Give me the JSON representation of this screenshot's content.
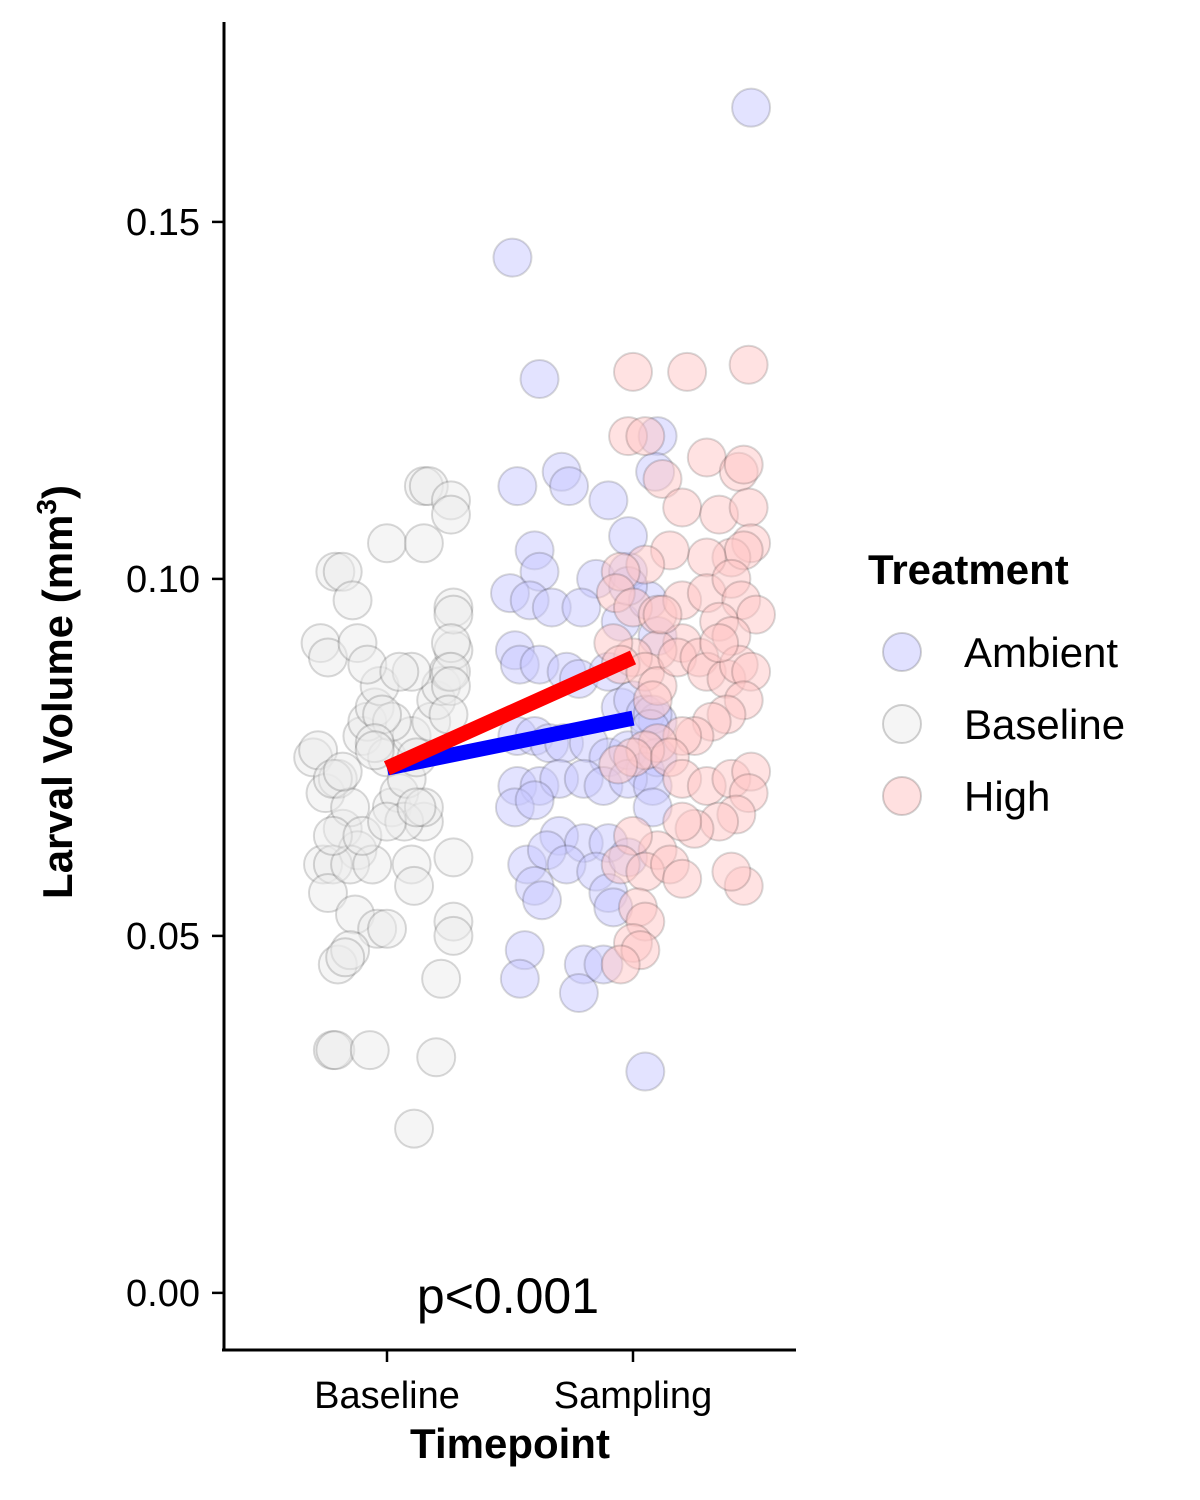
{
  "chart_data": {
    "type": "scatter",
    "xlabel": "Timepoint",
    "ylabel": "Larval Volume (mm",
    "ylabel_sup": "3",
    "ylabel_close": ")",
    "categories": [
      "Baseline",
      "Sampling"
    ],
    "ylim": [
      -0.008,
      0.178
    ],
    "yticks": [
      0.0,
      0.05,
      0.1,
      0.15
    ],
    "ytick_labels": [
      "0.00",
      "0.05",
      "0.10",
      "0.15"
    ],
    "grid": false,
    "legend": {
      "title": "Treatment",
      "position": "right",
      "entries": [
        {
          "name": "Ambient",
          "color": "#0000ff"
        },
        {
          "name": "Baseline",
          "color": "#bfbfbf"
        },
        {
          "name": "High",
          "color": "#ff0000"
        }
      ]
    },
    "annotation": "p<0.001",
    "colors": {
      "Ambient_fill": "#c8c8ff",
      "Baseline_fill": "#ececec",
      "High_fill": "#ffc6c6",
      "Ambient_line": "#0000ff",
      "High_line": "#ff0000"
    },
    "trend_lines": [
      {
        "name": "Ambient",
        "from": {
          "x": "Baseline",
          "y": 0.0735
        },
        "to": {
          "x": "Sampling",
          "y": 0.0805
        }
      },
      {
        "name": "High",
        "from": {
          "x": "Baseline",
          "y": 0.0735
        },
        "to": {
          "x": "Sampling",
          "y": 0.089
        }
      }
    ],
    "series": [
      {
        "name": "Baseline",
        "x": "Baseline",
        "points": [
          [
            -0.3,
            0.075
          ],
          [
            -0.28,
            0.076
          ],
          [
            -0.25,
            0.07
          ],
          [
            -0.2,
            0.072
          ],
          [
            -0.22,
            0.072
          ],
          [
            -0.18,
            0.065
          ],
          [
            -0.15,
            0.068
          ],
          [
            -0.12,
            0.062
          ],
          [
            -0.1,
            0.078
          ],
          [
            -0.08,
            0.08
          ],
          [
            -0.05,
            0.082
          ],
          [
            -0.03,
            0.085
          ],
          [
            0.0,
            0.075
          ],
          [
            0.02,
            0.068
          ],
          [
            0.05,
            0.07
          ],
          [
            0.08,
            0.072
          ],
          [
            0.1,
            0.078
          ],
          [
            0.12,
            0.075
          ],
          [
            0.15,
            0.066
          ],
          [
            0.18,
            0.08
          ],
          [
            0.2,
            0.083
          ],
          [
            0.22,
            0.085
          ],
          [
            0.25,
            0.087
          ],
          [
            0.27,
            0.09
          ],
          [
            -0.27,
            0.091
          ],
          [
            -0.24,
            0.089
          ],
          [
            -0.21,
            0.101
          ],
          [
            -0.18,
            0.101
          ],
          [
            -0.14,
            0.097
          ],
          [
            -0.12,
            0.091
          ],
          [
            -0.08,
            0.088
          ],
          [
            0.0,
            0.105
          ],
          [
            0.15,
            0.105
          ],
          [
            0.15,
            0.113
          ],
          [
            0.17,
            0.113
          ],
          [
            0.26,
            0.111
          ],
          [
            0.26,
            0.109
          ],
          [
            0.27,
            0.096
          ],
          [
            0.27,
            0.095
          ],
          [
            0.26,
            0.091
          ],
          [
            0.26,
            0.087
          ],
          [
            0.26,
            0.085
          ],
          [
            0.25,
            0.081
          ],
          [
            0.1,
            0.087
          ],
          [
            0.05,
            0.087
          ],
          [
            0.02,
            0.08
          ],
          [
            -0.02,
            0.081
          ],
          [
            -0.05,
            0.077
          ],
          [
            -0.26,
            0.06
          ],
          [
            -0.22,
            0.06
          ],
          [
            -0.24,
            0.056
          ],
          [
            -0.15,
            0.06
          ],
          [
            -0.13,
            0.053
          ],
          [
            -0.06,
            0.06
          ],
          [
            -0.04,
            0.051
          ],
          [
            0.0,
            0.051
          ],
          [
            0.1,
            0.06
          ],
          [
            0.11,
            0.057
          ],
          [
            0.27,
            0.061
          ],
          [
            0.27,
            0.052
          ],
          [
            0.27,
            0.05
          ],
          [
            -0.2,
            0.046
          ],
          [
            -0.15,
            0.048
          ],
          [
            -0.17,
            0.047
          ],
          [
            0.22,
            0.044
          ],
          [
            -0.22,
            0.034
          ],
          [
            -0.21,
            0.034
          ],
          [
            -0.07,
            0.034
          ],
          [
            0.2,
            0.033
          ],
          [
            0.11,
            0.023
          ],
          [
            0.07,
            0.066
          ],
          [
            0.15,
            0.068
          ],
          [
            -0.22,
            0.064
          ],
          [
            -0.1,
            0.064
          ],
          [
            0.0,
            0.066
          ],
          [
            0.12,
            0.068
          ],
          [
            -0.18,
            0.073
          ],
          [
            -0.05,
            0.076
          ]
        ]
      },
      {
        "name": "Ambient",
        "x": "Sampling",
        "points": [
          [
            0.48,
            0.166
          ],
          [
            -0.49,
            0.145
          ],
          [
            -0.38,
            0.128
          ],
          [
            -0.29,
            0.115
          ],
          [
            -0.47,
            0.113
          ],
          [
            -0.26,
            0.113
          ],
          [
            -0.1,
            0.111
          ],
          [
            -0.4,
            0.104
          ],
          [
            -0.38,
            0.101
          ],
          [
            -0.15,
            0.1
          ],
          [
            -0.02,
            0.101
          ],
          [
            -0.5,
            0.098
          ],
          [
            -0.42,
            0.097
          ],
          [
            -0.33,
            0.096
          ],
          [
            -0.21,
            0.096
          ],
          [
            -0.05,
            0.094
          ],
          [
            0.06,
            0.097
          ],
          [
            0.1,
            0.092
          ],
          [
            -0.48,
            0.09
          ],
          [
            -0.46,
            0.088
          ],
          [
            -0.38,
            0.088
          ],
          [
            -0.27,
            0.087
          ],
          [
            -0.22,
            0.086
          ],
          [
            -0.1,
            0.087
          ],
          [
            -0.05,
            0.082
          ],
          [
            0.0,
            0.083
          ],
          [
            0.05,
            0.081
          ],
          [
            0.1,
            0.08
          ],
          [
            -0.47,
            0.078
          ],
          [
            -0.4,
            0.078
          ],
          [
            -0.34,
            0.077
          ],
          [
            -0.28,
            0.077
          ],
          [
            -0.18,
            0.077
          ],
          [
            -0.1,
            0.075
          ],
          [
            -0.02,
            0.076
          ],
          [
            0.05,
            0.073
          ],
          [
            0.1,
            0.075
          ],
          [
            -0.47,
            0.071
          ],
          [
            -0.38,
            0.071
          ],
          [
            -0.3,
            0.072
          ],
          [
            -0.2,
            0.072
          ],
          [
            -0.12,
            0.071
          ],
          [
            -0.02,
            0.072
          ],
          [
            0.08,
            0.071
          ],
          [
            -0.48,
            0.068
          ],
          [
            -0.4,
            0.069
          ],
          [
            0.08,
            0.068
          ],
          [
            -0.3,
            0.064
          ],
          [
            -0.2,
            0.063
          ],
          [
            -0.1,
            0.063
          ],
          [
            -0.43,
            0.06
          ],
          [
            -0.35,
            0.062
          ],
          [
            -0.27,
            0.06
          ],
          [
            -0.15,
            0.059
          ],
          [
            -0.02,
            0.061
          ],
          [
            -0.4,
            0.057
          ],
          [
            -0.37,
            0.055
          ],
          [
            -0.1,
            0.056
          ],
          [
            -0.08,
            0.054
          ],
          [
            -0.44,
            0.048
          ],
          [
            -0.2,
            0.046
          ],
          [
            -0.22,
            0.042
          ],
          [
            -0.12,
            0.046
          ],
          [
            -0.46,
            0.044
          ],
          [
            0.05,
            0.031
          ],
          [
            0.1,
            0.12
          ],
          [
            0.09,
            0.115
          ],
          [
            0.08,
            0.081
          ],
          [
            0.07,
            0.079
          ],
          [
            -0.02,
            0.106
          ],
          [
            -0.02,
            0.099
          ]
        ]
      },
      {
        "name": "High",
        "x": "Sampling",
        "points": [
          [
            0.0,
            0.129
          ],
          [
            0.22,
            0.129
          ],
          [
            0.47,
            0.13
          ],
          [
            -0.02,
            0.12
          ],
          [
            0.05,
            0.12
          ],
          [
            0.3,
            0.117
          ],
          [
            0.43,
            0.115
          ],
          [
            0.45,
            0.116
          ],
          [
            0.12,
            0.114
          ],
          [
            0.2,
            0.11
          ],
          [
            0.35,
            0.109
          ],
          [
            0.47,
            0.11
          ],
          [
            0.48,
            0.105
          ],
          [
            0.4,
            0.103
          ],
          [
            0.45,
            0.104
          ],
          [
            0.3,
            0.103
          ],
          [
            0.15,
            0.104
          ],
          [
            0.05,
            0.102
          ],
          [
            -0.05,
            0.101
          ],
          [
            -0.07,
            0.098
          ],
          [
            0.0,
            0.096
          ],
          [
            0.1,
            0.095
          ],
          [
            0.2,
            0.097
          ],
          [
            0.3,
            0.098
          ],
          [
            0.4,
            0.1
          ],
          [
            0.44,
            0.097
          ],
          [
            0.5,
            0.095
          ],
          [
            0.35,
            0.094
          ],
          [
            0.4,
            0.092
          ],
          [
            0.2,
            0.091
          ],
          [
            0.1,
            0.09
          ],
          [
            0.0,
            0.089
          ],
          [
            -0.08,
            0.091
          ],
          [
            -0.05,
            0.088
          ],
          [
            0.05,
            0.087
          ],
          [
            0.1,
            0.085
          ],
          [
            0.18,
            0.089
          ],
          [
            0.27,
            0.089
          ],
          [
            0.3,
            0.087
          ],
          [
            0.38,
            0.086
          ],
          [
            0.43,
            0.088
          ],
          [
            0.48,
            0.087
          ],
          [
            0.45,
            0.083
          ],
          [
            0.38,
            0.081
          ],
          [
            0.32,
            0.08
          ],
          [
            0.25,
            0.078
          ],
          [
            0.2,
            0.078
          ],
          [
            0.1,
            0.077
          ],
          [
            0.05,
            0.076
          ],
          [
            0.0,
            0.075
          ],
          [
            -0.06,
            0.074
          ],
          [
            0.15,
            0.075
          ],
          [
            0.2,
            0.072
          ],
          [
            0.3,
            0.071
          ],
          [
            0.4,
            0.072
          ],
          [
            0.48,
            0.073
          ],
          [
            0.47,
            0.07
          ],
          [
            0.42,
            0.067
          ],
          [
            0.35,
            0.066
          ],
          [
            0.25,
            0.065
          ],
          [
            0.2,
            0.066
          ],
          [
            0.1,
            0.062
          ],
          [
            0.0,
            0.064
          ],
          [
            -0.05,
            0.06
          ],
          [
            0.05,
            0.059
          ],
          [
            0.15,
            0.06
          ],
          [
            0.2,
            0.058
          ],
          [
            0.45,
            0.057
          ],
          [
            0.4,
            0.059
          ],
          [
            0.02,
            0.054
          ],
          [
            0.05,
            0.052
          ],
          [
            0.0,
            0.049
          ],
          [
            0.03,
            0.048
          ],
          [
            -0.05,
            0.046
          ],
          [
            0.35,
            0.091
          ],
          [
            0.12,
            0.095
          ],
          [
            0.08,
            0.083
          ]
        ]
      }
    ]
  }
}
